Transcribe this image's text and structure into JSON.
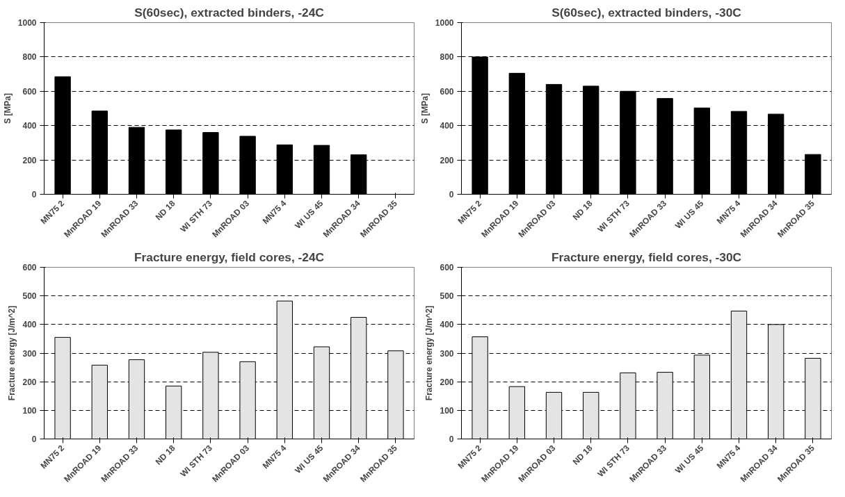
{
  "chart_data": [
    {
      "type": "bar",
      "title": "S(60sec), extracted binders, -24C",
      "ylabel": "S [MPa]",
      "categories": [
        "MN75 2",
        "MnROAD 19",
        "MnROAD 33",
        "ND 18",
        "WI STH 73",
        "MnROAD 03",
        "MN75 4",
        "WI US 45",
        "MnROAD 34",
        "MnROAD 35"
      ],
      "values": [
        685,
        485,
        390,
        375,
        360,
        338,
        288,
        285,
        230,
        null
      ],
      "color": "#000000",
      "ylim": [
        0,
        1000
      ],
      "yticks": [
        0,
        200,
        400,
        600,
        800,
        1000
      ],
      "grid": "y"
    },
    {
      "type": "bar",
      "title": "S(60sec), extracted binders, -30C",
      "ylabel": "S [MPa]",
      "categories": [
        "MN75 2",
        "MnROAD 19",
        "MnROAD 03",
        "ND 18",
        "WI STH 73",
        "MnROAD 33",
        "WI US 45",
        "MN75 4",
        "MnROAD 34",
        "MnROAD 35"
      ],
      "values": [
        800,
        705,
        640,
        630,
        600,
        558,
        503,
        483,
        467,
        232
      ],
      "color": "#000000",
      "ylim": [
        0,
        1000
      ],
      "yticks": [
        0,
        200,
        400,
        600,
        800,
        1000
      ],
      "grid": "y"
    },
    {
      "type": "bar",
      "title": "Fracture energy, field cores, -24C",
      "ylabel": "Fracture energy [J/m^2]",
      "categories": [
        "MN75 2",
        "MnROAD 19",
        "MnROAD 33",
        "ND 18",
        "WI STH 73",
        "MnROAD 03",
        "MN75 4",
        "WI US 45",
        "MnROAD 34",
        "MnROAD 35"
      ],
      "values": [
        355,
        258,
        277,
        185,
        303,
        270,
        482,
        322,
        425,
        308
      ],
      "color": "#e4e4e4",
      "ylim": [
        0,
        600
      ],
      "yticks": [
        0,
        100,
        200,
        300,
        400,
        500,
        600
      ],
      "grid": "y"
    },
    {
      "type": "bar",
      "title": "Fracture energy, field cores, -30C",
      "ylabel": "Fracture energy [J/m^2]",
      "categories": [
        "MN75 2",
        "MnROAD 19",
        "MnROAD 03",
        "ND 18",
        "WI STH 73",
        "MnROAD 33",
        "WI US 45",
        "MN75 4",
        "MnROAD 34",
        "MnROAD 35"
      ],
      "values": [
        357,
        183,
        163,
        163,
        231,
        233,
        293,
        447,
        400,
        282
      ],
      "color": "#e4e4e4",
      "ylim": [
        0,
        600
      ],
      "yticks": [
        0,
        100,
        200,
        300,
        400,
        500,
        600
      ],
      "grid": "y"
    }
  ]
}
